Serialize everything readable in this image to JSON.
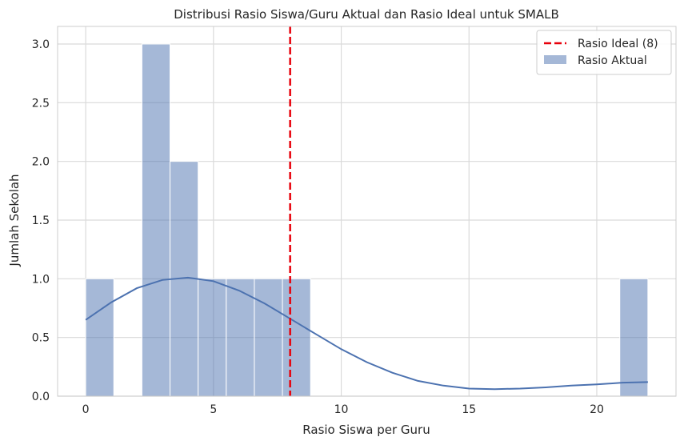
{
  "chart_data": {
    "type": "bar",
    "title": "Distribusi Rasio Siswa/Guru Aktual dan Rasio Ideal untuk SMALB",
    "xlabel": "Rasio Siswa per Guru",
    "ylabel": "Jumlah Sekolah",
    "xlim": [
      -1.1,
      23.1
    ],
    "ylim": [
      0,
      3.15
    ],
    "xticks": [
      0,
      5,
      10,
      15,
      20
    ],
    "xtick_labels": [
      "0",
      "5",
      "10",
      "15",
      "20"
    ],
    "yticks": [
      0,
      0.5,
      1.0,
      1.5,
      2.0,
      2.5,
      3.0
    ],
    "ytick_labels": [
      "0.0",
      "0.5",
      "1.0",
      "1.5",
      "2.0",
      "2.5",
      "3.0"
    ],
    "grid": true,
    "legend_position": "top-right",
    "bin_start": 0,
    "bin_width": 1.1,
    "bins": [
      {
        "x0": 0.0,
        "x1": 1.1,
        "count": 1
      },
      {
        "x0": 2.2,
        "x1": 3.3,
        "count": 3
      },
      {
        "x0": 3.3,
        "x1": 4.4,
        "count": 2
      },
      {
        "x0": 4.4,
        "x1": 5.5,
        "count": 1
      },
      {
        "x0": 5.5,
        "x1": 6.6,
        "count": 1
      },
      {
        "x0": 6.6,
        "x1": 7.7,
        "count": 1
      },
      {
        "x0": 7.7,
        "x1": 8.8,
        "count": 1
      },
      {
        "x0": 20.9,
        "x1": 22.0,
        "count": 1
      }
    ],
    "kde": {
      "x": [
        0,
        1,
        2,
        3,
        4,
        5,
        6,
        7,
        8,
        9,
        10,
        11,
        12,
        13,
        14,
        15,
        16,
        17,
        18,
        19,
        20,
        21,
        22
      ],
      "y": [
        0.65,
        0.8,
        0.92,
        0.99,
        1.01,
        0.98,
        0.9,
        0.79,
        0.66,
        0.53,
        0.4,
        0.29,
        0.2,
        0.13,
        0.09,
        0.065,
        0.06,
        0.065,
        0.075,
        0.09,
        0.1,
        0.115,
        0.12
      ]
    },
    "ideal_line": {
      "x": 8,
      "label": "Rasio Ideal (8)",
      "color": "#e8000b"
    },
    "series": [
      {
        "name": "Rasio Aktual",
        "color": "#4c72b0",
        "bar_opacity": 0.5
      }
    ]
  }
}
